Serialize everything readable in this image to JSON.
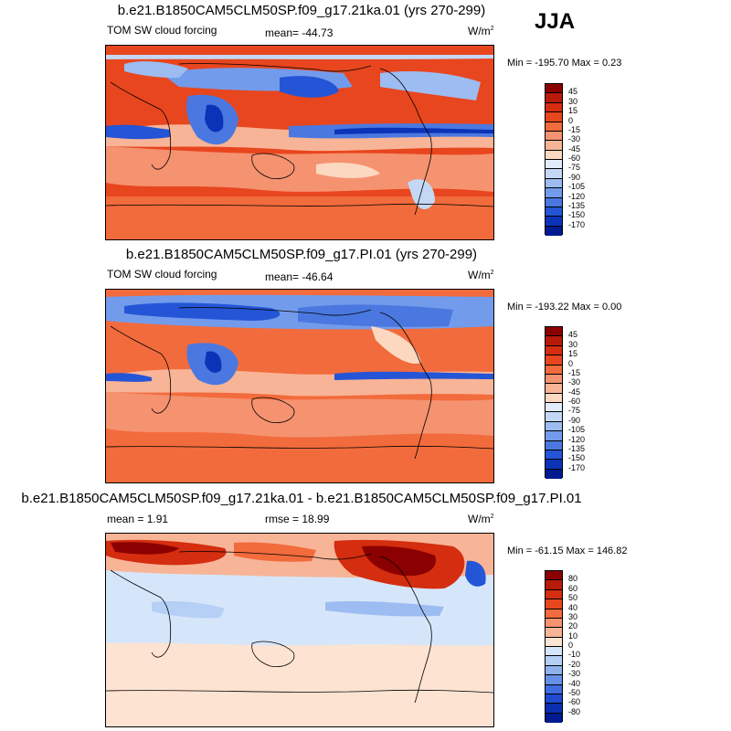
{
  "season_label": "JJA",
  "chart_data": [
    {
      "type": "heatmap",
      "title": "b.e21.B1850CAM5CLM50SP.f09_g17.21ka.01 (yrs 270-299)",
      "left_label": "TOM SW cloud forcing",
      "center_label": "mean= -44.73",
      "units": "W/m",
      "units_sup": "2",
      "minmax": "Min = -195.70 Max =   0.23",
      "mean": -44.73,
      "min": -195.7,
      "max": 0.23,
      "colorbar": {
        "labels": [
          "45",
          "30",
          "15",
          "0",
          "-15",
          "-30",
          "-45",
          "-60",
          "-75",
          "-90",
          "-105",
          "-120",
          "-135",
          "-150",
          "-170"
        ],
        "colors": [
          "#8b0000",
          "#b81a0a",
          "#d42d0f",
          "#e8461e",
          "#f26b3c",
          "#f59270",
          "#f8b497",
          "#fcd8c1",
          "#e3ecfb",
          "#c4d8f6",
          "#9dbcf1",
          "#739beb",
          "#4a78e0",
          "#2455d6",
          "#0b33b8",
          "#001a8f"
        ]
      }
    },
    {
      "type": "heatmap",
      "title": "b.e21.B1850CAM5CLM50SP.f09_g17.PI.01 (yrs 270-299)",
      "left_label": "TOM SW cloud forcing",
      "center_label": "mean= -46.64",
      "units": "W/m",
      "units_sup": "2",
      "minmax": "Min = -193.22 Max =   0.00",
      "mean": -46.64,
      "min": -193.22,
      "max": 0.0,
      "colorbar": {
        "labels": [
          "45",
          "30",
          "15",
          "0",
          "-15",
          "-30",
          "-45",
          "-60",
          "-75",
          "-90",
          "-105",
          "-120",
          "-135",
          "-150",
          "-170"
        ],
        "colors": [
          "#8b0000",
          "#b81a0a",
          "#d42d0f",
          "#e8461e",
          "#f26b3c",
          "#f59270",
          "#f8b497",
          "#fcd8c1",
          "#e3ecfb",
          "#c4d8f6",
          "#9dbcf1",
          "#739beb",
          "#4a78e0",
          "#2455d6",
          "#0b33b8",
          "#001a8f"
        ]
      }
    },
    {
      "type": "heatmap",
      "title": "b.e21.B1850CAM5CLM50SP.f09_g17.21ka.01 - b.e21.B1850CAM5CLM50SP.f09_g17.PI.01",
      "left_label": "mean =   1.91",
      "center_label": "rmse =  18.99",
      "units": "W/m",
      "units_sup": "2",
      "minmax": "Min = -61.15 Max = 146.82",
      "mean": 1.91,
      "rmse": 18.99,
      "min": -61.15,
      "max": 146.82,
      "colorbar": {
        "labels": [
          "80",
          "60",
          "50",
          "40",
          "30",
          "20",
          "10",
          "0",
          "-10",
          "-20",
          "-30",
          "-40",
          "-50",
          "-60",
          "-80"
        ],
        "colors": [
          "#8b0000",
          "#b81a0a",
          "#d42d0f",
          "#e8461e",
          "#f26b3c",
          "#f59270",
          "#f8b497",
          "#fde3d2",
          "#d6e6fa",
          "#b5cff5",
          "#8fb2ef",
          "#6690e8",
          "#3f6ddf",
          "#1f4bd0",
          "#0a2fb0",
          "#001a8f"
        ]
      }
    }
  ]
}
